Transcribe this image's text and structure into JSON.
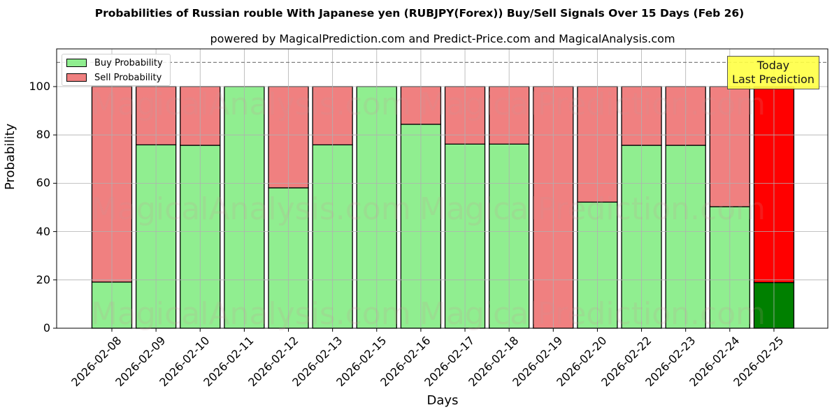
{
  "title": "Probabilities of Russian rouble With Japanese yen (RUBJPY(Forex)) Buy/Sell Signals Over 15 Days (Feb 26)",
  "subtitle": "powered by MagicalPrediction.com and Predict-Price.com and MagicalAnalysis.com",
  "legend": {
    "buy": "Buy Probability",
    "sell": "Sell Probability"
  },
  "annotation": {
    "line1": "Today",
    "line2": "Last Prediction"
  },
  "watermarks": [
    "MagicalAnalysis.com",
    "MagicalPrediction.com"
  ],
  "colors": {
    "buy": "#90ee90",
    "sell": "#f08080",
    "buy_today": "#008000",
    "sell_today": "#ff0000",
    "annotation_bg": "#ffff44"
  },
  "chart_data": {
    "type": "bar",
    "stacked": true,
    "title": "Probabilities of Russian rouble With Japanese yen (RUBJPY(Forex)) Buy/Sell Signals Over 15 Days (Feb 26)",
    "subtitle": "powered by MagicalPrediction.com and Predict-Price.com and MagicalAnalysis.com",
    "xlabel": "Days",
    "ylabel": "Probability",
    "ylim": [
      0,
      115
    ],
    "yticks": [
      0,
      20,
      40,
      60,
      80,
      100
    ],
    "grid": true,
    "legend_position": "upper left",
    "reference_line": {
      "y": 110,
      "style": "dashed"
    },
    "categories": [
      "2026-02-08",
      "2026-02-09",
      "2026-02-10",
      "2026-02-11",
      "2026-02-12",
      "2026-02-13",
      "2026-02-15",
      "2026-02-16",
      "2026-02-17",
      "2026-02-18",
      "2026-02-19",
      "2026-02-20",
      "2026-02-22",
      "2026-02-23",
      "2026-02-24",
      "2026-02-25"
    ],
    "series": [
      {
        "name": "Buy Probability",
        "values": [
          19.1,
          75.9,
          75.7,
          100,
          58.1,
          75.9,
          100,
          84.4,
          76.2,
          76.2,
          0,
          52.2,
          75.7,
          75.7,
          50.3,
          18.9
        ]
      },
      {
        "name": "Sell Probability",
        "values": [
          80.9,
          24.1,
          24.3,
          0,
          41.9,
          24.1,
          0,
          15.6,
          23.8,
          23.8,
          100,
          47.8,
          24.3,
          24.3,
          49.7,
          81.1
        ]
      }
    ],
    "highlight": {
      "category": "2026-02-25",
      "label": "Today Last Prediction"
    }
  }
}
